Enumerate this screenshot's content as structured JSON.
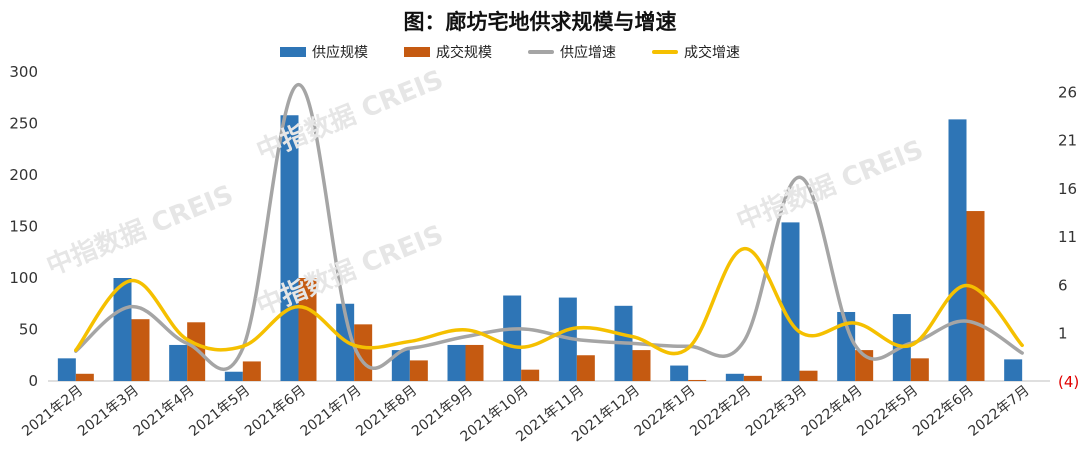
{
  "title": "图：廊坊宅地供求规模与增速",
  "watermark": "中指数据 CREIS",
  "colors": {
    "supply_bar": "#2e75b6",
    "deal_bar": "#c55a11",
    "supply_line": "#a5a5a5",
    "deal_line": "#f5c000",
    "negative_tick": "#e00000"
  },
  "chart_data": {
    "type": "bar",
    "categories": [
      "2021年2月",
      "2021年3月",
      "2021年4月",
      "2021年5月",
      "2021年6月",
      "2021年7月",
      "2021年8月",
      "2021年9月",
      "2021年10月",
      "2021年11月",
      "2021年12月",
      "2022年1月",
      "2022年2月",
      "2022年3月",
      "2022年4月",
      "2022年5月",
      "2022年6月",
      "2022年7月"
    ],
    "series": [
      {
        "name": "供应规模",
        "kind": "bar",
        "axis": "left",
        "values": [
          22,
          100,
          35,
          9,
          258,
          75,
          30,
          35,
          83,
          81,
          73,
          15,
          7,
          154,
          67,
          65,
          254,
          21
        ]
      },
      {
        "name": "成交规模",
        "kind": "bar",
        "axis": "left",
        "values": [
          7,
          60,
          57,
          19,
          100,
          55,
          20,
          35,
          11,
          25,
          30,
          1,
          5,
          10,
          30,
          22,
          165,
          0
        ]
      },
      {
        "name": "供应增速",
        "kind": "line",
        "axis": "right",
        "values": [
          -0.8,
          3.8,
          0.0,
          -0.5,
          26.8,
          -0.3,
          -0.5,
          0.7,
          1.5,
          0.4,
          0.0,
          -0.3,
          0.2,
          17.2,
          -0.2,
          0.0,
          2.3,
          -1.0
        ]
      },
      {
        "name": "成交增速",
        "kind": "line",
        "axis": "right",
        "values": [
          -0.7,
          6.5,
          0.4,
          -0.3,
          3.8,
          -0.2,
          0.2,
          1.4,
          -0.4,
          1.6,
          0.7,
          -0.5,
          9.8,
          1.2,
          2.1,
          -0.2,
          6.0,
          -0.2
        ]
      }
    ],
    "y_left": {
      "min": 0,
      "max": 300,
      "ticks": [
        "0",
        "50",
        "100",
        "150",
        "200",
        "250",
        "300"
      ]
    },
    "y_right": {
      "min": -4,
      "max": 28,
      "tick_values": [
        -4,
        1,
        6,
        11,
        16,
        21,
        26
      ],
      "tick_labels": [
        "(4)",
        "1",
        "6",
        "11",
        "16",
        "21",
        "26"
      ]
    },
    "legend_position": "top",
    "grid": false
  }
}
